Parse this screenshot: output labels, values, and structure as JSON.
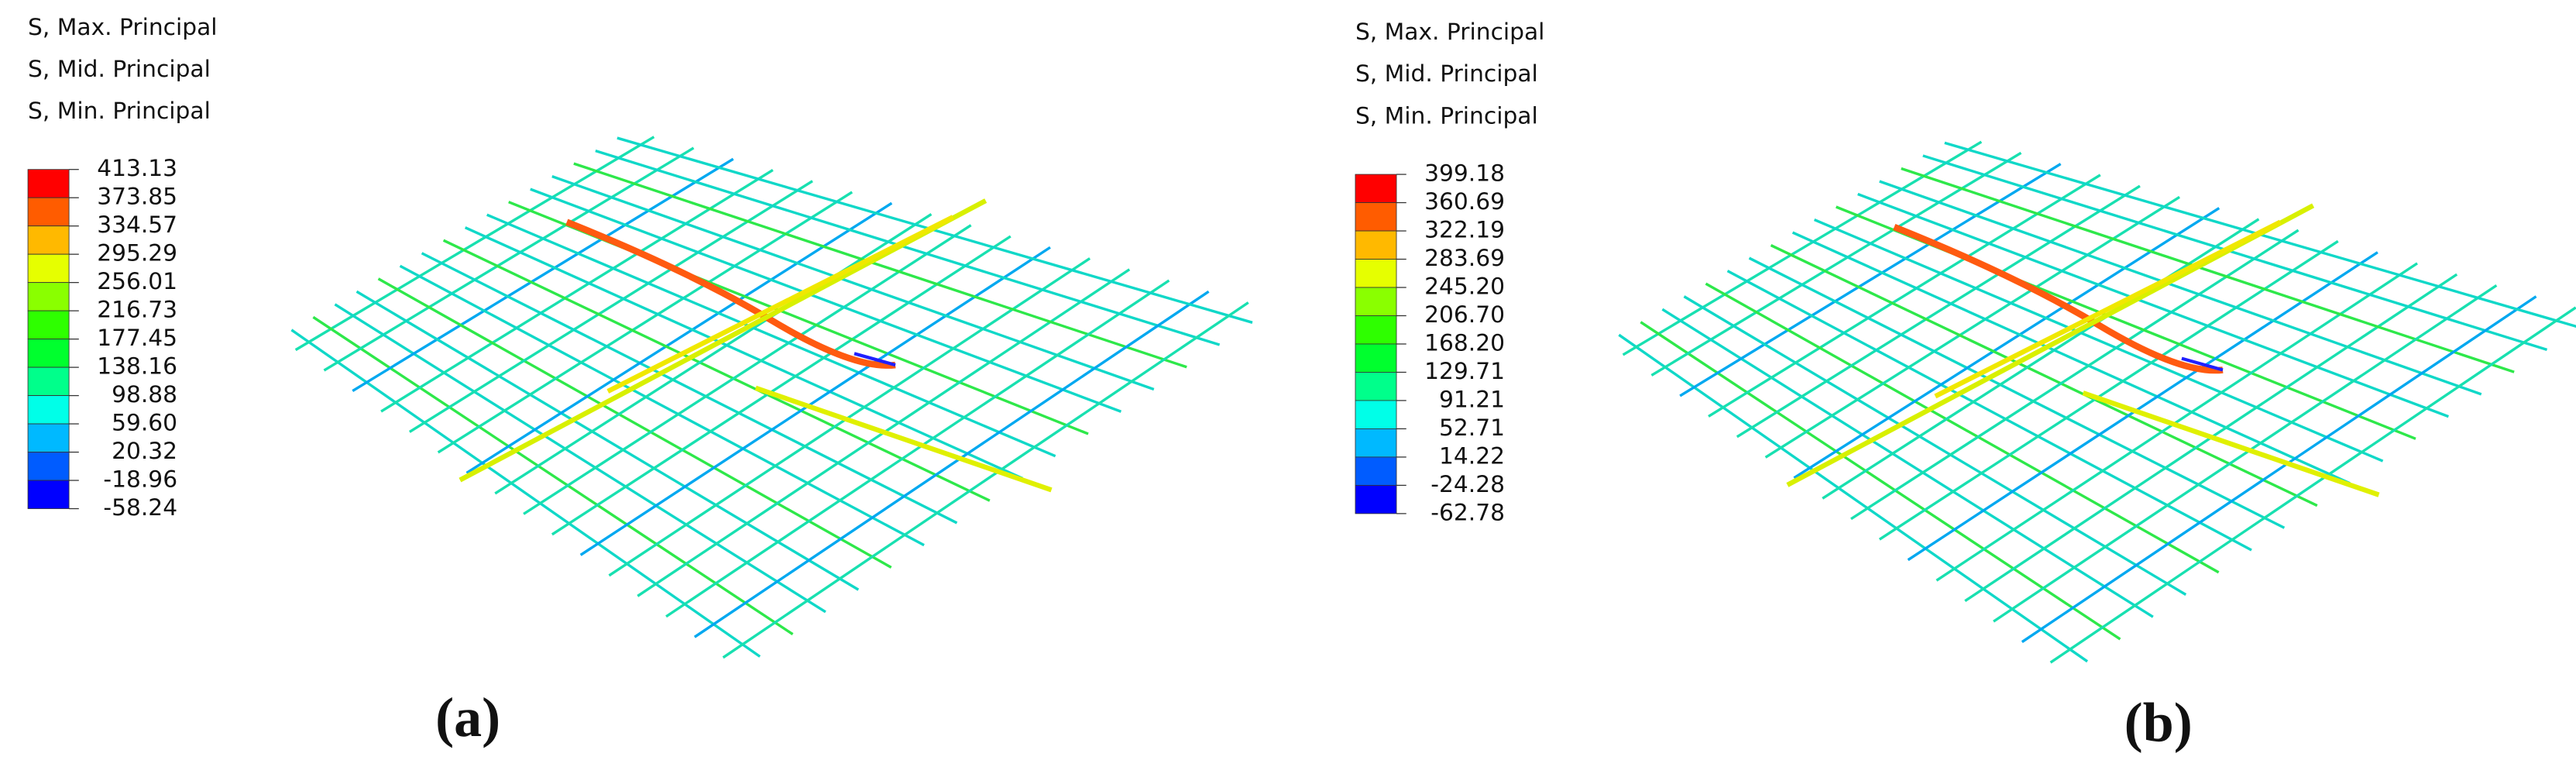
{
  "panels": [
    {
      "legend_titles": [
        "S, Max. Principal",
        "S, Mid. Principal",
        "S, Min. Principal"
      ],
      "scale_values": [
        {
          "value": 413.13,
          "label": "413.13"
        },
        {
          "value": 373.85,
          "label": "373.85"
        },
        {
          "value": 334.57,
          "label": "334.57"
        },
        {
          "value": 295.29,
          "label": "295.29"
        },
        {
          "value": 256.01,
          "label": "256.01"
        },
        {
          "value": 216.73,
          "label": "216.73"
        },
        {
          "value": 177.45,
          "label": "177.45"
        },
        {
          "value": 138.16,
          "label": "138.16"
        },
        {
          "value": 98.88,
          "label": "98.88"
        },
        {
          "value": 59.6,
          "label": "59.60"
        },
        {
          "value": 20.32,
          "label": "20.32"
        },
        {
          "value": -18.96,
          "label": "-18.96"
        },
        {
          "value": -58.24,
          "label": "-58.24"
        }
      ],
      "caption": "(a)"
    },
    {
      "legend_titles": [
        "S, Max. Principal",
        "S, Mid. Principal",
        "S, Min. Principal"
      ],
      "scale_values": [
        {
          "value": 399.18,
          "label": "399.18"
        },
        {
          "value": 360.69,
          "label": "360.69"
        },
        {
          "value": 322.19,
          "label": "322.19"
        },
        {
          "value": 283.69,
          "label": "283.69"
        },
        {
          "value": 245.2,
          "label": "245.20"
        },
        {
          "value": 206.7,
          "label": "206.70"
        },
        {
          "value": 168.2,
          "label": "168.20"
        },
        {
          "value": 129.71,
          "label": "129.71"
        },
        {
          "value": 91.21,
          "label": "91.21"
        },
        {
          "value": 52.71,
          "label": "52.71"
        },
        {
          "value": 14.22,
          "label": "14.22"
        },
        {
          "value": -24.28,
          "label": "-24.28"
        },
        {
          "value": -62.78,
          "label": "-62.78"
        }
      ],
      "caption": "(b)"
    }
  ],
  "colorbar_colors": [
    "#ff0000",
    "#ff5c00",
    "#ffb900",
    "#e6ff00",
    "#8aff00",
    "#2eff00",
    "#00ff2e",
    "#00ff8b",
    "#00ffe8",
    "#00b9ff",
    "#005cff",
    "#0000ff"
  ]
}
